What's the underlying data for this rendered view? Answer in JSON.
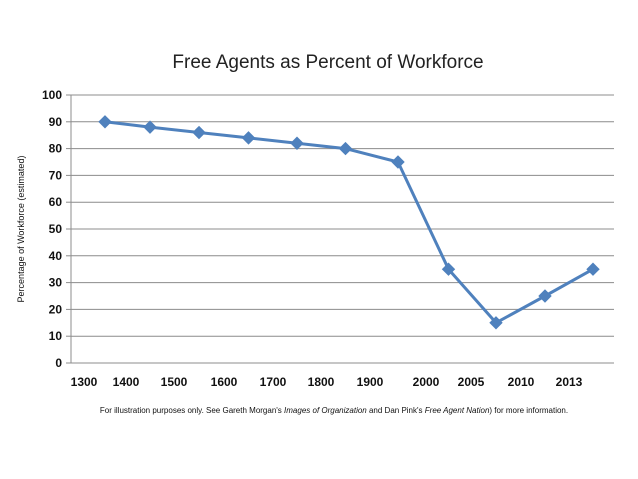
{
  "chart_data": {
    "type": "line",
    "title": "Free Agents as Percent of Workforce",
    "xlabel": "",
    "ylabel": "Percentage of Workforce (estimated)",
    "x": [
      "1300",
      "1400",
      "1500",
      "1600",
      "1700",
      "1800",
      "1900",
      "2000",
      "2005",
      "2010",
      "2013"
    ],
    "points_x": [
      1350,
      1450,
      1550,
      1650,
      1750,
      1850,
      1950,
      2002.5,
      2007.5,
      2011.5,
      2014.5
    ],
    "values": [
      90,
      88,
      86,
      84,
      82,
      80,
      75,
      35,
      15,
      25,
      35
    ],
    "ylim": [
      0,
      100
    ],
    "yticks": [
      0,
      10,
      20,
      30,
      40,
      50,
      60,
      70,
      80,
      90,
      100
    ],
    "grid": true,
    "legend": "none",
    "line_color": "#4f81bd",
    "note": {
      "part1": "For illustration purposes only.  See Gareth Morgan's ",
      "book1": "Images of Organization",
      "part2": " and Dan Pink's ",
      "book2": "Free Agent Nation",
      "part3": ") for more information."
    }
  }
}
